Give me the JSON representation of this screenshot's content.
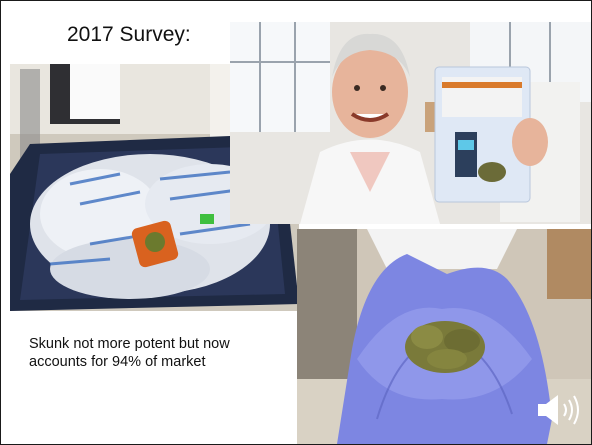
{
  "slide": {
    "title": "2017 Survey:",
    "caption": "Skunk not more potent but now accounts for 94% of market"
  },
  "media": {
    "photos": [
      {
        "name": "seized-cannabis-bags-photo",
        "icon": "photo"
      },
      {
        "name": "scientist-holding-evidence-bag-photo",
        "icon": "photo"
      },
      {
        "name": "gloved-hands-holding-cannabis-photo",
        "icon": "photo"
      }
    ],
    "audio_icon": "speaker-icon"
  },
  "colors": {
    "background": "#ffffff",
    "text": "#111111",
    "glove": "#7d86e2",
    "cannabis": "#7a7a3a"
  }
}
